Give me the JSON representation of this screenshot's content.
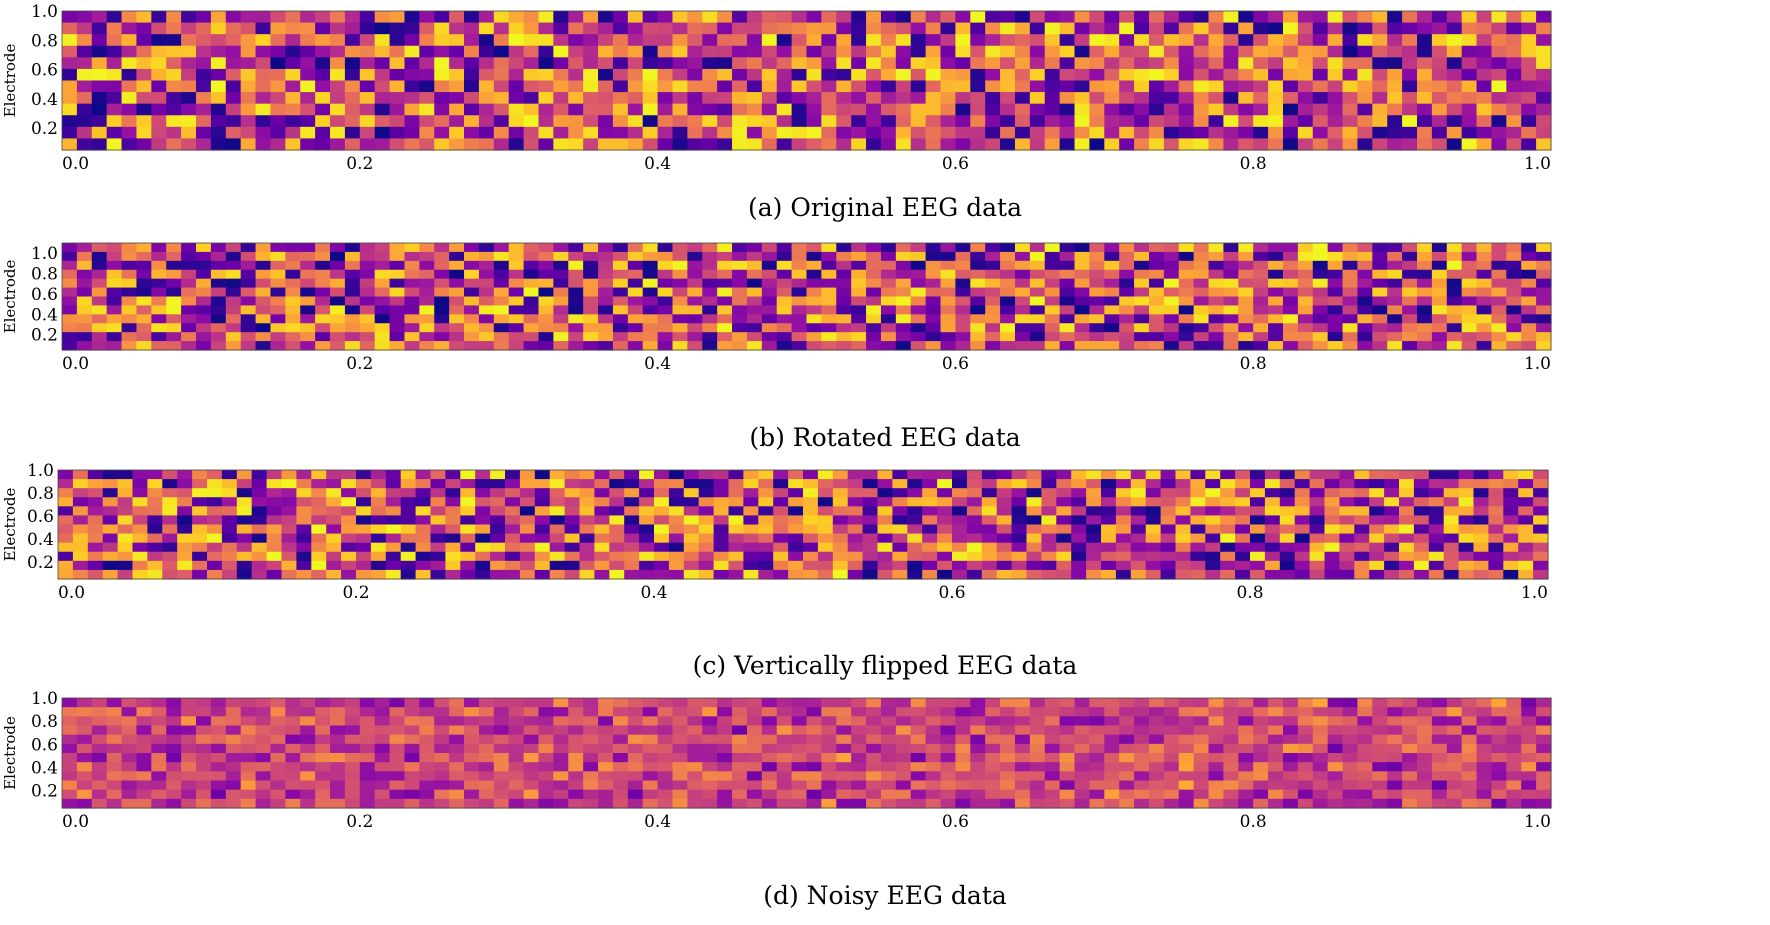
{
  "chart_data": [
    {
      "type": "heatmap",
      "caption": "(a) Original EEG data",
      "ylabel": "Electrode",
      "xlim": [
        0.0,
        1.0
      ],
      "ylim": [
        0.05,
        1.0
      ],
      "xticks": [
        "0.0",
        "0.2",
        "0.4",
        "0.6",
        "0.8",
        "1.0"
      ],
      "yticks": [
        "0.2",
        "0.4",
        "0.6",
        "0.8",
        "1.0"
      ],
      "colormap": "plasma",
      "grid": {
        "columns": 100,
        "rows": 12
      },
      "variant": "original"
    },
    {
      "type": "heatmap",
      "caption": "(b) Rotated EEG data",
      "ylabel": "Electrode",
      "xlim": [
        0.0,
        1.0
      ],
      "ylim": [
        0.05,
        1.1
      ],
      "xticks": [
        "0.0",
        "0.2",
        "0.4",
        "0.6",
        "0.8",
        "1.0"
      ],
      "yticks": [
        "0.2",
        "0.4",
        "0.6",
        "0.8",
        "1.0"
      ],
      "colormap": "plasma",
      "grid": {
        "columns": 100,
        "rows": 12
      },
      "variant": "rotated"
    },
    {
      "type": "heatmap",
      "caption": "(c) Vertically flipped EEG data",
      "ylabel": "Electrode",
      "xlim": [
        0.0,
        1.0
      ],
      "ylim": [
        0.05,
        1.0
      ],
      "xticks": [
        "0.0",
        "0.2",
        "0.4",
        "0.6",
        "0.8",
        "1.0"
      ],
      "yticks": [
        "0.2",
        "0.4",
        "0.6",
        "0.8",
        "1.0"
      ],
      "colormap": "plasma",
      "grid": {
        "columns": 100,
        "rows": 12
      },
      "variant": "flipped"
    },
    {
      "type": "heatmap",
      "caption": "(d) Noisy EEG data",
      "ylabel": "Electrode",
      "xlim": [
        0.0,
        1.0
      ],
      "ylim": [
        0.05,
        1.0
      ],
      "xticks": [
        "0.0",
        "0.2",
        "0.4",
        "0.6",
        "0.8",
        "1.0"
      ],
      "yticks": [
        "0.2",
        "0.4",
        "0.6",
        "0.8",
        "1.0"
      ],
      "colormap": "plasma",
      "grid": {
        "columns": 100,
        "rows": 12
      },
      "variant": "noisy"
    }
  ]
}
